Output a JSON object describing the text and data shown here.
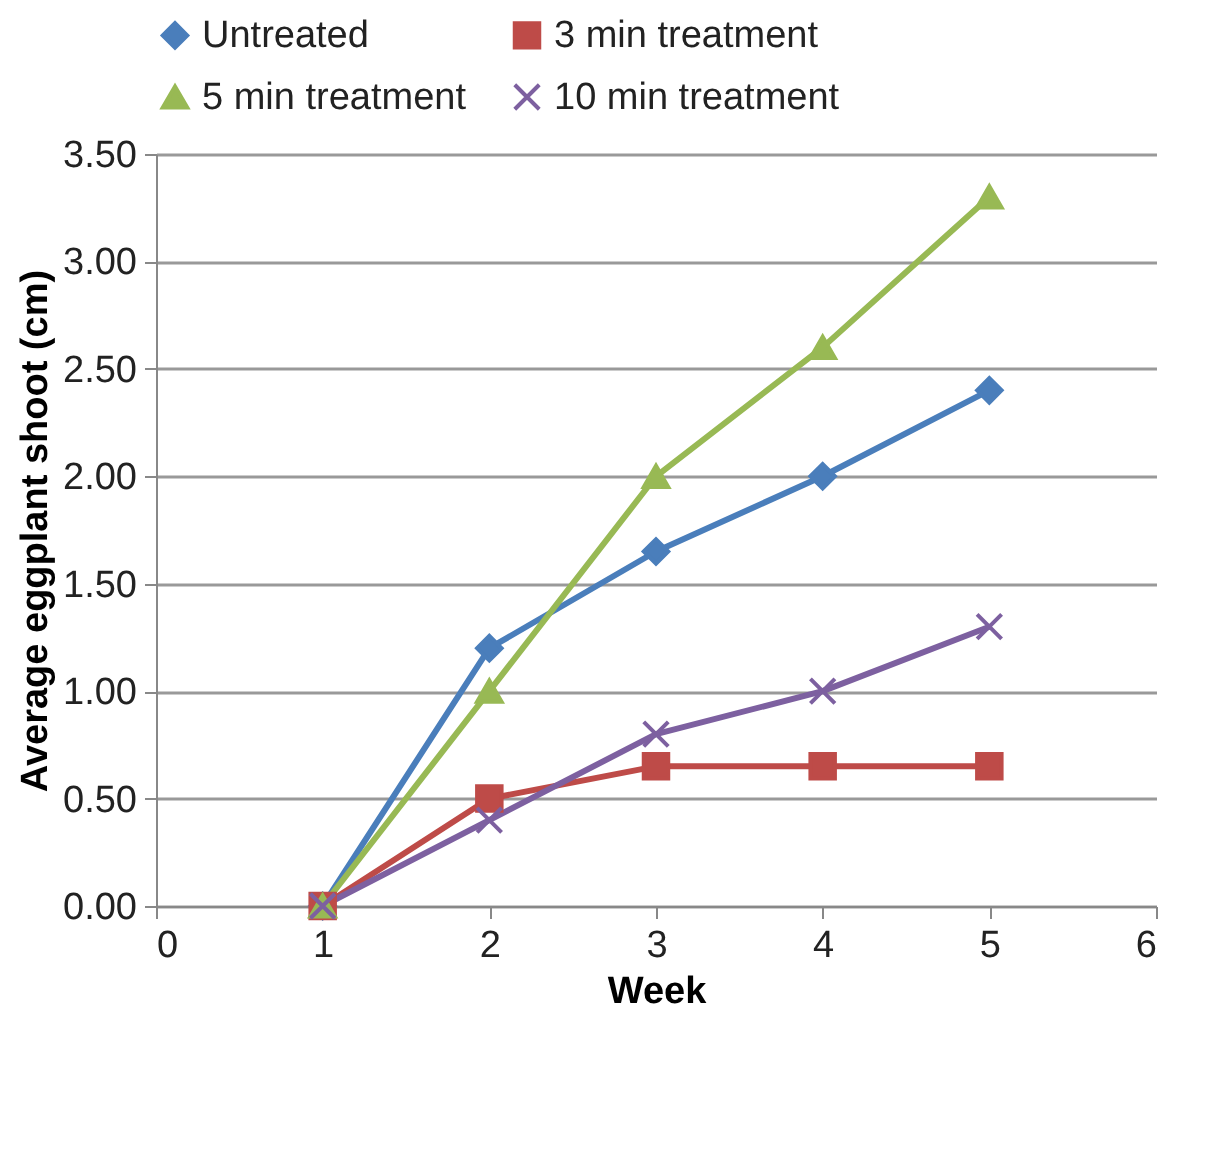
{
  "chart_data": {
    "type": "line",
    "xlabel": "Week",
    "ylabel": "Average eggplant shoot (cm)",
    "x": [
      1,
      2,
      3,
      4,
      5
    ],
    "series": [
      {
        "name": "Untreated",
        "color": "#4a7ebb",
        "marker": "diamond",
        "values": [
          0,
          1.2,
          1.65,
          2.0,
          2.4
        ]
      },
      {
        "name": "3 min treatment",
        "color": "#be4b48",
        "marker": "square",
        "values": [
          0,
          0.5,
          0.65,
          0.65,
          0.65
        ]
      },
      {
        "name": "5 min treatment",
        "color": "#98b954",
        "marker": "triangle",
        "values": [
          0,
          1.0,
          2.0,
          2.6,
          3.3
        ]
      },
      {
        "name": "10 min treatment",
        "color": "#7d60a0",
        "marker": "cross",
        "values": [
          0,
          0.4,
          0.8,
          1.0,
          1.3
        ]
      }
    ],
    "xlim": [
      0,
      6
    ],
    "xticks": [
      0,
      1,
      2,
      3,
      4,
      5,
      6
    ],
    "ylim": [
      0,
      3.5
    ],
    "yticks": [
      {
        "value": 0,
        "label": "0.00"
      },
      {
        "value": 0.5,
        "label": "0.50"
      },
      {
        "value": 1,
        "label": "1.00"
      },
      {
        "value": 1.5,
        "label": "1.50"
      },
      {
        "value": 2,
        "label": "2.00"
      },
      {
        "value": 2.5,
        "label": "2.50"
      },
      {
        "value": 3,
        "label": "3.00"
      },
      {
        "value": 3.5,
        "label": "3.50"
      }
    ],
    "grid": "y",
    "legend": "top",
    "line_style": "solid"
  }
}
